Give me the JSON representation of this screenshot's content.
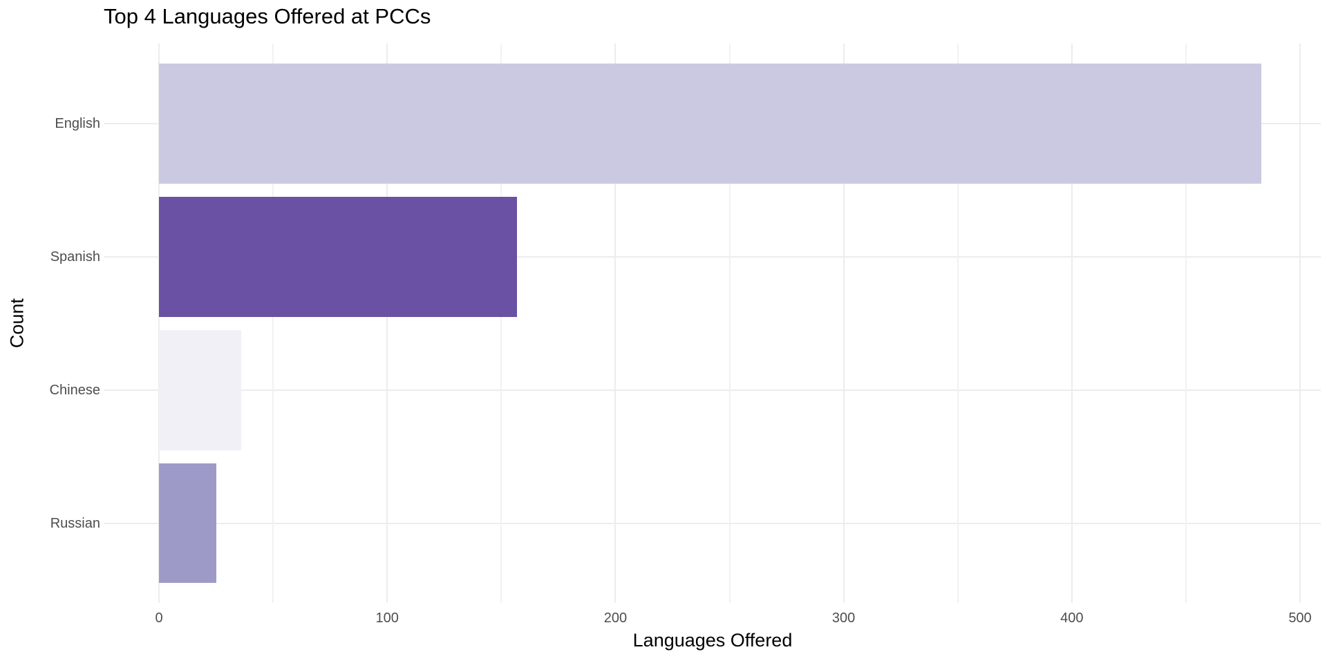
{
  "chart_data": {
    "type": "bar",
    "orientation": "horizontal",
    "title": "Top 4 Languages Offered at PCCs",
    "xlabel": "Languages Offered",
    "ylabel": "Count",
    "categories": [
      "English",
      "Spanish",
      "Chinese",
      "Russian"
    ],
    "values": [
      483,
      157,
      36,
      25
    ],
    "bar_colors": [
      "#cbc9e2",
      "#6a51a3",
      "#f2f0f7",
      "#9e9ac8"
    ],
    "x_ticks": [
      0,
      100,
      200,
      300,
      400,
      500
    ],
    "x_minor_ticks": [
      50,
      150,
      250,
      350,
      450
    ],
    "xlim": [
      -24,
      509
    ],
    "grid": "vertical major+minor, horizontal at category centers",
    "legend": "none",
    "colors": {
      "background": "#ffffff",
      "grid_major": "#ececec",
      "grid_minor": "#f2f2f2",
      "tick_label": "#4d4d4d",
      "title": "#000000"
    }
  }
}
